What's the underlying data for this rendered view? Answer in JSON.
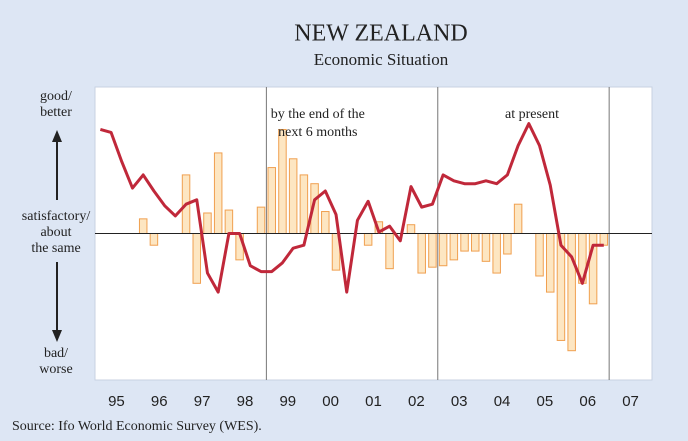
{
  "chart_data": {
    "type": "combo",
    "title": "NEW ZEALAND",
    "subtitle": "Economic Situation",
    "source": "Source: Ifo World Economic Survey (WES).",
    "annotations": [
      {
        "text": [
          "by the end of the",
          "next 6 months"
        ],
        "x": 2000.2
      },
      {
        "text": [
          "at present"
        ],
        "x": 2005.2
      }
    ],
    "y_side_labels": {
      "top": [
        "good/",
        "better"
      ],
      "middle": [
        "satisfactory/",
        "about",
        "the same"
      ],
      "bottom": [
        "bad/",
        "worse"
      ]
    },
    "xlim": [
      1995,
      2008
    ],
    "xticks": [
      {
        "value": 1995.5,
        "label": "95"
      },
      {
        "value": 1996.5,
        "label": "96"
      },
      {
        "value": 1997.5,
        "label": "97"
      },
      {
        "value": 1998.5,
        "label": "98"
      },
      {
        "value": 1999.5,
        "label": "99"
      },
      {
        "value": 2000.5,
        "label": "00"
      },
      {
        "value": 2001.5,
        "label": "01"
      },
      {
        "value": 2002.5,
        "label": "02"
      },
      {
        "value": 2003.5,
        "label": "03"
      },
      {
        "value": 2004.5,
        "label": "04"
      },
      {
        "value": 2005.5,
        "label": "05"
      },
      {
        "value": 2006.5,
        "label": "06"
      },
      {
        "value": 2007.5,
        "label": "07"
      }
    ],
    "dividers": [
      1999,
      2003,
      2007
    ],
    "ylim": [
      -100,
      100
    ],
    "zero_line": 0,
    "x": [
      1995.125,
      1995.375,
      1995.625,
      1995.875,
      1996.125,
      1996.375,
      1996.625,
      1996.875,
      1997.125,
      1997.375,
      1997.625,
      1997.875,
      1998.125,
      1998.375,
      1998.625,
      1998.875,
      1999.125,
      1999.375,
      1999.625,
      1999.875,
      2000.125,
      2000.375,
      2000.625,
      2000.875,
      2001.125,
      2001.375,
      2001.625,
      2001.875,
      2002.125,
      2002.375,
      2002.625,
      2002.875,
      2003.125,
      2003.375,
      2003.625,
      2003.875,
      2004.125,
      2004.375,
      2004.625,
      2004.875,
      2005.125,
      2005.375,
      2005.625,
      2005.875,
      2006.125,
      2006.375,
      2006.625,
      2006.875
    ],
    "series": [
      {
        "type": "bar",
        "color": "#fde6c2",
        "stroke": "#f0a050",
        "values": [
          null,
          null,
          null,
          null,
          10,
          -8,
          null,
          null,
          40,
          -34,
          14,
          55,
          16,
          -18,
          null,
          18,
          45,
          71,
          51,
          40,
          34,
          15,
          -25,
          null,
          null,
          -8,
          8,
          -24,
          null,
          6,
          -27,
          -23,
          -22,
          -18,
          -12,
          -12,
          -19,
          -27,
          -14,
          20,
          null,
          -29,
          -40,
          -73,
          -80,
          -34,
          -48,
          -8
        ]
      },
      {
        "type": "line",
        "color": "#c0283a",
        "values": [
          71,
          69,
          49,
          31,
          40,
          29,
          19,
          12,
          20,
          23,
          -27,
          -40,
          0,
          0,
          -22,
          -26,
          -26,
          -20,
          -10,
          -8,
          23,
          29,
          13,
          -40,
          9,
          22,
          1,
          5,
          -5,
          32,
          18,
          20,
          40,
          36,
          34,
          34,
          36,
          34,
          40,
          60,
          75,
          60,
          33,
          -8,
          -16,
          -34,
          -8,
          -8
        ]
      }
    ]
  }
}
